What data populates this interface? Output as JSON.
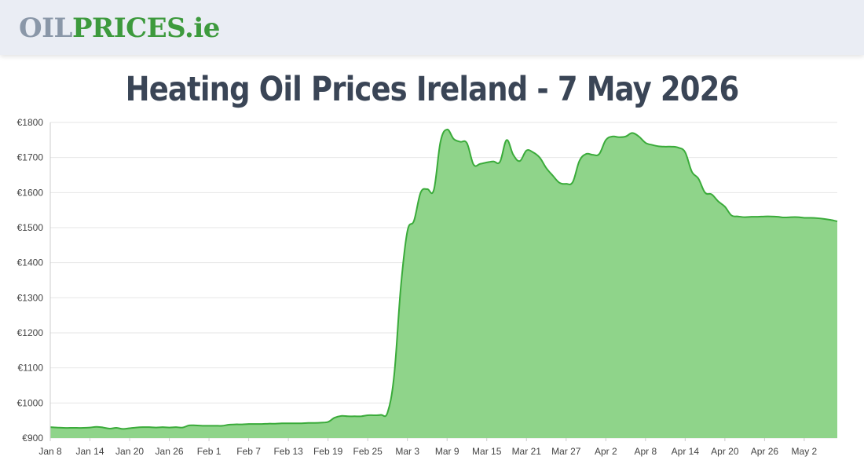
{
  "header": {
    "logo_part1": "OIL",
    "logo_part2": "PRICES",
    "logo_part3": ".ie"
  },
  "page_title": "Heating Oil Prices Ireland - 7 May 2026",
  "colors": {
    "brand_green": "#3d9a3d",
    "area_fill": "#8fd48a",
    "line": "#3aab3a",
    "grid": "#e6e6e6",
    "header_bg": "#eaedf4"
  },
  "chart_data": {
    "type": "area",
    "title": "",
    "xlabel": "",
    "ylabel": "",
    "ylim": [
      900,
      1800
    ],
    "yticks": [
      900,
      1000,
      1100,
      1200,
      1300,
      1400,
      1500,
      1600,
      1700,
      1800
    ],
    "ytick_labels": [
      "€900",
      "€1000",
      "€1100",
      "€1200",
      "€1300",
      "€1400",
      "€1500",
      "€1600",
      "€1700",
      "€1800"
    ],
    "xticks": [
      "Jan 8",
      "Jan 14",
      "Jan 20",
      "Jan 26",
      "Feb 1",
      "Feb 7",
      "Feb 13",
      "Feb 19",
      "Feb 25",
      "Mar 3",
      "Mar 9",
      "Mar 15",
      "Mar 21",
      "Mar 27",
      "Apr 2",
      "Apr 8",
      "Apr 14",
      "Apr 20",
      "Apr 26",
      "May 2"
    ],
    "grid": true,
    "legend": "none",
    "series": [
      {
        "x": [
          "Jan 8",
          "Jan 9",
          "Jan 10",
          "Jan 11",
          "Jan 12",
          "Jan 13",
          "Jan 14",
          "Jan 15",
          "Jan 16",
          "Jan 17",
          "Jan 18",
          "Jan 19",
          "Jan 20",
          "Jan 21",
          "Jan 22",
          "Jan 23",
          "Jan 24",
          "Jan 25",
          "Jan 26",
          "Jan 27",
          "Jan 28",
          "Jan 29",
          "Jan 30",
          "Jan 31",
          "Feb 1",
          "Feb 2",
          "Feb 3",
          "Feb 4",
          "Feb 5",
          "Feb 6",
          "Feb 7",
          "Feb 8",
          "Feb 9",
          "Feb 10",
          "Feb 11",
          "Feb 12",
          "Feb 13",
          "Feb 14",
          "Feb 15",
          "Feb 16",
          "Feb 17",
          "Feb 18",
          "Feb 19",
          "Feb 20",
          "Feb 21",
          "Feb 22",
          "Feb 23",
          "Feb 24",
          "Feb 25",
          "Feb 26",
          "Feb 27",
          "Feb 28",
          "Mar 1",
          "Mar 2",
          "Mar 3",
          "Mar 4",
          "Mar 5",
          "Mar 6",
          "Mar 7",
          "Mar 8",
          "Mar 9",
          "Mar 10",
          "Mar 11",
          "Mar 12",
          "Mar 13",
          "Mar 14",
          "Mar 15",
          "Mar 16",
          "Mar 17",
          "Mar 18",
          "Mar 19",
          "Mar 20",
          "Mar 21",
          "Mar 22",
          "Mar 23",
          "Mar 24",
          "Mar 25",
          "Mar 26",
          "Mar 27",
          "Mar 28",
          "Mar 29",
          "Mar 30",
          "Mar 31",
          "Apr 1",
          "Apr 2",
          "Apr 3",
          "Apr 4",
          "Apr 5",
          "Apr 6",
          "Apr 7",
          "Apr 8",
          "Apr 9",
          "Apr 10",
          "Apr 11",
          "Apr 12",
          "Apr 13",
          "Apr 14",
          "Apr 15",
          "Apr 16",
          "Apr 17",
          "Apr 18",
          "Apr 19",
          "Apr 20",
          "Apr 21",
          "Apr 22",
          "Apr 23",
          "Apr 24",
          "Apr 25",
          "Apr 26",
          "Apr 27",
          "Apr 28",
          "Apr 29",
          "Apr 30",
          "May 1",
          "May 2",
          "May 3",
          "May 4",
          "May 5",
          "May 6",
          "May 7"
        ],
        "values": [
          931,
          930,
          929,
          929,
          929,
          929,
          930,
          932,
          930,
          927,
          929,
          926,
          928,
          930,
          931,
          931,
          930,
          931,
          930,
          931,
          930,
          936,
          936,
          935,
          935,
          935,
          935,
          938,
          939,
          939,
          940,
          940,
          940,
          941,
          941,
          942,
          942,
          942,
          942,
          943,
          943,
          944,
          946,
          958,
          963,
          962,
          962,
          962,
          965,
          965,
          966,
          973,
          1080,
          1330,
          1490,
          1520,
          1600,
          1610,
          1608,
          1745,
          1780,
          1753,
          1745,
          1741,
          1680,
          1682,
          1686,
          1689,
          1688,
          1750,
          1708,
          1690,
          1720,
          1715,
          1700,
          1670,
          1648,
          1628,
          1625,
          1630,
          1690,
          1710,
          1708,
          1710,
          1750,
          1760,
          1758,
          1760,
          1770,
          1760,
          1742,
          1736,
          1732,
          1731,
          1731,
          1728,
          1715,
          1660,
          1640,
          1600,
          1595,
          1575,
          1560,
          1535,
          1532,
          1530,
          1531,
          1531,
          1532,
          1532,
          1531,
          1529,
          1530,
          1530,
          1528,
          1528,
          1527,
          1525,
          1522,
          1518
        ]
      }
    ]
  }
}
